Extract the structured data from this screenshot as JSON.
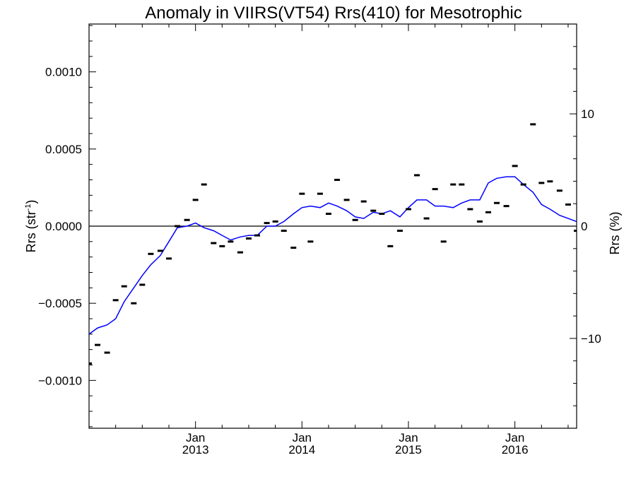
{
  "chart_data": {
    "type": "line",
    "title": "Anomaly in VIIRS(VT54) Rrs(410) for Mesotrophic",
    "ylabel_main": "Rrs (str",
    "ylabel_sup": "-1",
    "ylabel_close": ")",
    "y2label": "Rrs (%)",
    "xlim": [
      2012.0,
      2016.58
    ],
    "ylim": [
      -0.00131,
      0.00131
    ],
    "y2lim": [
      -18.0,
      18.0
    ],
    "yticks": [
      {
        "value": 0.001,
        "label": "0.0010"
      },
      {
        "value": 0.0005,
        "label": "0.0005"
      },
      {
        "value": 0.0,
        "label": "0.0000"
      },
      {
        "value": -0.0005,
        "label": "−0.0005"
      },
      {
        "value": -0.001,
        "label": "−0.0010"
      }
    ],
    "y2ticks": [
      {
        "value": 10,
        "label": "10"
      },
      {
        "value": 0,
        "label": "0"
      },
      {
        "value": -10,
        "label": "−10"
      }
    ],
    "xticks": [
      {
        "value": 2013.0,
        "month": "Jan",
        "year": "2013"
      },
      {
        "value": 2014.0,
        "month": "Jan",
        "year": "2014"
      },
      {
        "value": 2015.0,
        "month": "Jan",
        "year": "2015"
      },
      {
        "value": 2016.0,
        "month": "Jan",
        "year": "2016"
      }
    ],
    "series": [
      {
        "style": "markers",
        "color": "#000000",
        "x": [
          2012.0,
          2012.08,
          2012.17,
          2012.25,
          2012.33,
          2012.42,
          2012.5,
          2012.58,
          2012.67,
          2012.75,
          2012.83,
          2012.92,
          2013.0,
          2013.08,
          2013.17,
          2013.25,
          2013.33,
          2013.42,
          2013.5,
          2013.58,
          2013.67,
          2013.75,
          2013.83,
          2013.92,
          2014.0,
          2014.08,
          2014.17,
          2014.25,
          2014.33,
          2014.42,
          2014.5,
          2014.58,
          2014.67,
          2014.75,
          2014.83,
          2014.92,
          2015.0,
          2015.08,
          2015.17,
          2015.25,
          2015.33,
          2015.42,
          2015.5,
          2015.58,
          2015.67,
          2015.75,
          2015.83,
          2015.92,
          2016.0,
          2016.08,
          2016.17,
          2016.25,
          2016.33,
          2016.42,
          2016.5,
          2016.58
        ],
        "values": [
          -0.00089,
          -0.00077,
          -0.00082,
          -0.00048,
          -0.00039,
          -0.0005,
          -0.00038,
          -0.00018,
          -0.00016,
          -0.00021,
          0.0,
          4e-05,
          0.00017,
          0.00027,
          -0.00011,
          -0.00013,
          -0.0001,
          -0.00017,
          -8e-05,
          -6e-05,
          2e-05,
          3e-05,
          -3e-05,
          -0.00014,
          0.00021,
          -0.0001,
          0.00021,
          8e-05,
          0.0003,
          0.00017,
          4e-05,
          0.00016,
          0.0001,
          8e-05,
          -0.00013,
          -3e-05,
          0.00011,
          0.00033,
          5e-05,
          0.00024,
          -0.0001,
          0.00027,
          0.00027,
          0.00011,
          3e-05,
          9e-05,
          0.00015,
          0.00013,
          0.00039,
          0.00027,
          0.00066,
          0.00028,
          0.00029,
          0.00023,
          0.00014,
          -3e-05
        ]
      },
      {
        "style": "line",
        "color": "#0000ff",
        "x": [
          2012.0,
          2012.08,
          2012.17,
          2012.25,
          2012.33,
          2012.42,
          2012.5,
          2012.58,
          2012.67,
          2012.75,
          2012.83,
          2012.92,
          2013.0,
          2013.08,
          2013.17,
          2013.25,
          2013.33,
          2013.42,
          2013.5,
          2013.58,
          2013.67,
          2013.75,
          2013.83,
          2013.92,
          2014.0,
          2014.08,
          2014.17,
          2014.25,
          2014.33,
          2014.42,
          2014.5,
          2014.58,
          2014.67,
          2014.75,
          2014.83,
          2014.92,
          2015.0,
          2015.08,
          2015.17,
          2015.25,
          2015.33,
          2015.42,
          2015.5,
          2015.58,
          2015.67,
          2015.75,
          2015.83,
          2015.92,
          2016.0,
          2016.08,
          2016.17,
          2016.25,
          2016.33,
          2016.42,
          2016.5,
          2016.58
        ],
        "values": [
          -0.0007,
          -0.00066,
          -0.00064,
          -0.0006,
          -0.00049,
          -0.0004,
          -0.00032,
          -0.00025,
          -0.00019,
          -0.0001,
          -1e-05,
          0.0,
          2e-05,
          -1e-05,
          -3e-05,
          -6e-05,
          -9e-05,
          -7e-05,
          -6e-05,
          -6e-05,
          0.0,
          0.0,
          3e-05,
          8e-05,
          0.00012,
          0.00013,
          0.00012,
          0.00015,
          0.00013,
          0.0001,
          6e-05,
          5e-05,
          9e-05,
          8e-05,
          0.0001,
          6e-05,
          0.00012,
          0.00017,
          0.00017,
          0.00013,
          0.00013,
          0.00012,
          0.00015,
          0.00017,
          0.00017,
          0.00028,
          0.00031,
          0.00032,
          0.00032,
          0.00027,
          0.00022,
          0.00014,
          0.00011,
          7e-05,
          5e-05,
          3e-05
        ]
      }
    ],
    "zero_line": true,
    "grid": false
  }
}
